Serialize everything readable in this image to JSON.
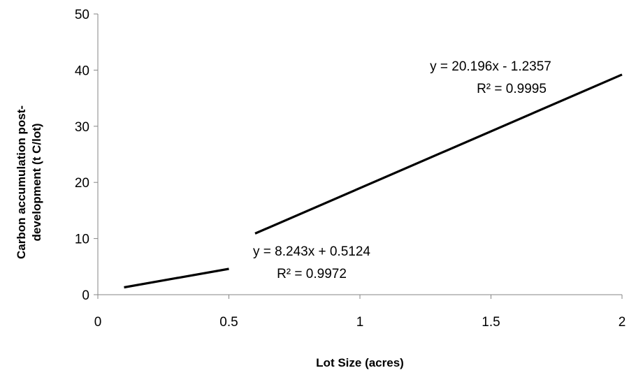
{
  "chart_data": {
    "type": "line",
    "xlabel": "Lot Size (acres)",
    "ylabel_lines": [
      "Carbon accumulation  post-",
      "development (t C/lot)"
    ],
    "xlim": [
      0,
      2
    ],
    "ylim": [
      0,
      50
    ],
    "x_ticks": [
      0,
      0.5,
      1,
      1.5,
      2
    ],
    "x_tick_labels": [
      "0",
      "0.5",
      "1",
      "1.5",
      "2"
    ],
    "y_ticks": [
      0,
      10,
      20,
      30,
      40,
      50
    ],
    "y_tick_labels": [
      "0",
      "10",
      "20",
      "30",
      "40",
      "50"
    ],
    "grid": false,
    "series": [
      {
        "x": [
          0.1,
          0.5
        ],
        "y": [
          1.3,
          4.6
        ],
        "color": "#000000"
      },
      {
        "x": [
          0.6,
          2.0
        ],
        "y": [
          10.9,
          39.2
        ],
        "color": "#000000"
      }
    ],
    "annotations": [
      {
        "lines": [
          "y = 20.196x - 1.2357",
          "R² = 0.9995"
        ]
      },
      {
        "lines": [
          "y = 8.243x + 0.5124",
          "R² = 0.9972"
        ]
      }
    ]
  }
}
